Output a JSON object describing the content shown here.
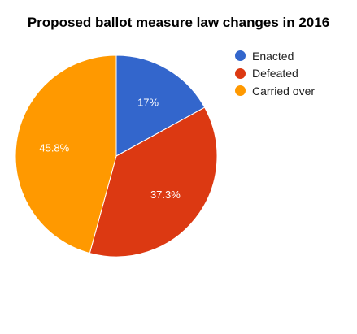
{
  "chart_data": {
    "type": "pie",
    "title": "Proposed ballot measure law changes in 2016",
    "categories": [
      "Enacted",
      "Defeated",
      "Carried over"
    ],
    "values": [
      17,
      37.3,
      45.8
    ],
    "labels": [
      "17%",
      "37.3%",
      "45.8%"
    ],
    "colors": [
      "#3366cc",
      "#dc3912",
      "#ff9900"
    ],
    "legend": "right",
    "start_angle": "12 o'clock",
    "direction": "clockwise"
  }
}
